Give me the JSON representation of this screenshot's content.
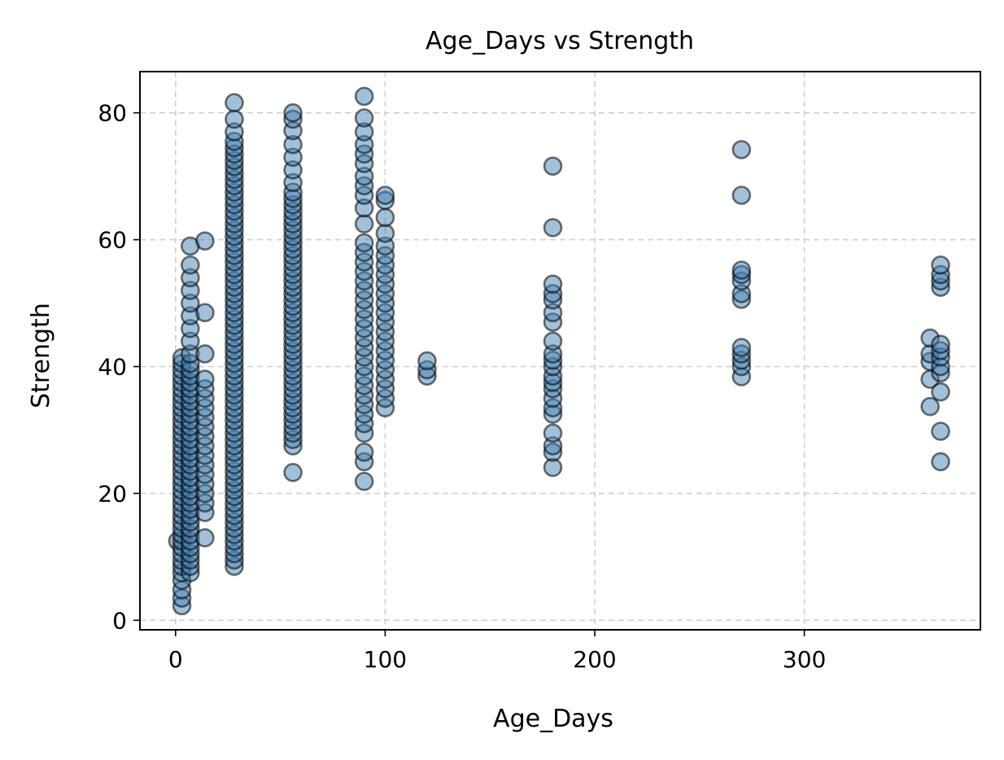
{
  "chart_data": {
    "type": "scatter",
    "title": "Age_Days vs Strength",
    "xlabel": "Age_Days",
    "ylabel": "Strength",
    "xlim": [
      -17,
      384
    ],
    "ylim": [
      -1.5,
      86.5
    ],
    "xticks": [
      0,
      100,
      200,
      300
    ],
    "yticks": [
      0,
      20,
      40,
      60,
      80
    ],
    "grid": true,
    "marker_fill": "#4682b4",
    "marker_edge": "#000000",
    "columns": [
      {
        "x": 1,
        "y": [
          12.5
        ]
      },
      {
        "x": 3,
        "y": [
          2.3,
          3.5,
          4.8,
          6.3,
          7.5,
          8.5,
          9.4,
          10.5,
          11.5,
          12.5,
          13.5,
          14.5,
          15.5,
          16.5,
          17.5,
          18.5,
          19.5,
          20.5,
          21.5,
          22.5,
          23.5,
          24.5,
          25.5,
          26.5,
          27.5,
          28.5,
          29.5,
          30.5,
          31.5,
          32.5,
          33.5,
          34.5,
          35.5,
          36.5,
          37.5,
          38.5,
          39.5,
          40.5,
          41.4
        ]
      },
      {
        "x": 7,
        "y": [
          7.5,
          8.5,
          9.5,
          10.5,
          11.5,
          12.5,
          13.5,
          14.5,
          15.5,
          16.5,
          17.5,
          18.5,
          19.5,
          20.5,
          21.5,
          22.5,
          23.5,
          24.5,
          25.5,
          26.5,
          27.5,
          28.5,
          29.5,
          30.5,
          31.5,
          32.5,
          33.5,
          34.5,
          35.5,
          36.5,
          37.5,
          38.5,
          39.5,
          40.5,
          42,
          44,
          46,
          48,
          50,
          52,
          54,
          56,
          59
        ]
      },
      {
        "x": 14,
        "y": [
          13,
          17,
          18.5,
          20,
          21.5,
          23,
          24.5,
          26,
          27.5,
          29,
          30.5,
          32,
          33.5,
          35,
          36.5,
          38,
          42,
          48.5,
          59.8
        ]
      },
      {
        "x": 28,
        "y": [
          8.5,
          9.5,
          10.5,
          11.5,
          12.5,
          13.5,
          14.5,
          15.5,
          16.5,
          17.5,
          18.5,
          19.5,
          20.5,
          21.5,
          22.5,
          23.5,
          24.5,
          25.5,
          26.5,
          27.5,
          28.5,
          29.5,
          30.5,
          31.5,
          32.5,
          33.5,
          34.5,
          35.5,
          36.5,
          37.5,
          38.5,
          39.5,
          40.5,
          41.5,
          42.5,
          43.5,
          44.5,
          45.5,
          46.5,
          47.5,
          48.5,
          49.5,
          50.5,
          51.5,
          52.5,
          53.5,
          54.5,
          55.5,
          56.5,
          57.5,
          58.5,
          59.5,
          60.5,
          61.5,
          62.5,
          63.5,
          64.5,
          65.5,
          66.5,
          67.5,
          68.5,
          69.5,
          70.5,
          71.5,
          72.5,
          73.5,
          74.5,
          75.5,
          77,
          79,
          81.6
        ]
      },
      {
        "x": 56,
        "y": [
          23.3,
          27.5,
          28.5,
          29.5,
          30.5,
          31.5,
          32.5,
          33.5,
          34.5,
          35.5,
          36.5,
          37.5,
          38.5,
          39.5,
          40.5,
          41.5,
          42.5,
          43.5,
          44.5,
          45.5,
          46.5,
          47.5,
          48.5,
          49.5,
          50.5,
          51.5,
          52.5,
          53.5,
          54.5,
          55.5,
          56.5,
          57.5,
          58.5,
          59.5,
          60.5,
          61.5,
          62.5,
          63.5,
          64.5,
          65.5,
          66.5,
          67.5,
          69,
          71,
          73,
          75,
          77.2,
          79,
          80
        ]
      },
      {
        "x": 90,
        "y": [
          21.9,
          25,
          26.5,
          29.5,
          31,
          32.5,
          34,
          35.5,
          37,
          38.5,
          40,
          41.5,
          43,
          44.5,
          46,
          47.5,
          49,
          50.5,
          52,
          53.5,
          55,
          56.5,
          58,
          59.5,
          62.5,
          65,
          67,
          68.5,
          70,
          72,
          73.5,
          75,
          77,
          79.2,
          82.6
        ]
      },
      {
        "x": 100,
        "y": [
          33.5,
          35,
          36.5,
          38,
          39.5,
          41,
          42.5,
          44,
          45.5,
          47,
          48.5,
          50,
          51.5,
          53,
          54.5,
          56,
          57.5,
          59,
          61,
          63.5,
          66.2,
          67
        ]
      },
      {
        "x": 120,
        "y": [
          38.5,
          39.5,
          40.9
        ]
      },
      {
        "x": 180,
        "y": [
          24.1,
          26.5,
          27.5,
          29.5,
          32.5,
          33.5,
          35,
          36.5,
          37.5,
          38.5,
          40,
          41,
          42,
          44,
          47,
          48.5,
          50.5,
          51.5,
          53,
          61.9,
          71.6
        ]
      },
      {
        "x": 270,
        "y": [
          38.4,
          40,
          41,
          42,
          43,
          50.6,
          51.5,
          53.5,
          54.5,
          55.2,
          67,
          74.2
        ]
      },
      {
        "x": 360,
        "y": [
          33.7,
          38,
          40.8,
          42,
          44.5
        ]
      },
      {
        "x": 365,
        "y": [
          25,
          29.8,
          36,
          39,
          40,
          41.5,
          42.5,
          43.5,
          52.5,
          53.5,
          54.5,
          56
        ]
      }
    ]
  }
}
